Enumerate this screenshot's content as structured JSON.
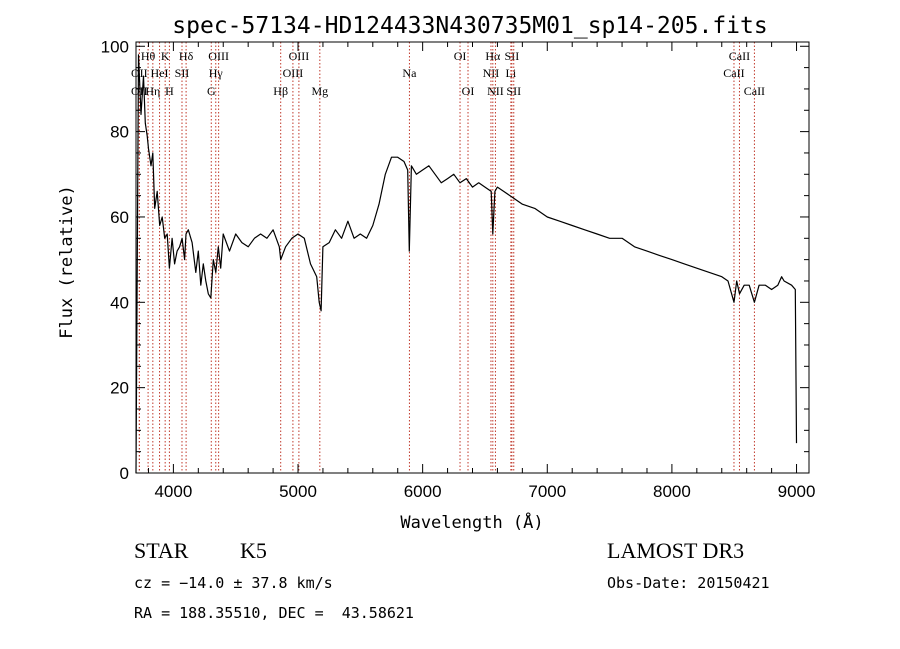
{
  "chart_data": {
    "type": "line",
    "title": "spec-57134-HD124433N430735M01_sp14-205.fits",
    "xlabel": "Wavelength (Å)",
    "ylabel": "Flux (relative)",
    "xlim": [
      3700,
      9100
    ],
    "ylim": [
      0,
      101
    ],
    "xticks": [
      4000,
      5000,
      6000,
      7000,
      8000,
      9000
    ],
    "yticks": [
      0,
      20,
      40,
      60,
      80,
      100
    ],
    "grid": false,
    "line_color": "#000000",
    "marker_color": "#c0392b",
    "series": [
      {
        "name": "",
        "x": [
          3700,
          3720,
          3740,
          3760,
          3775,
          3790,
          3800,
          3820,
          3835,
          3850,
          3870,
          3890,
          3910,
          3930,
          3950,
          3968,
          3990,
          4010,
          4030,
          4050,
          4070,
          4090,
          4101,
          4120,
          4150,
          4180,
          4200,
          4220,
          4240,
          4260,
          4280,
          4300,
          4320,
          4340,
          4360,
          4380,
          4400,
          4450,
          4500,
          4550,
          4600,
          4650,
          4700,
          4750,
          4800,
          4850,
          4861,
          4900,
          4950,
          5000,
          5050,
          5100,
          5150,
          5170,
          5185,
          5200,
          5250,
          5300,
          5350,
          5400,
          5450,
          5500,
          5550,
          5600,
          5650,
          5700,
          5750,
          5800,
          5850,
          5880,
          5893,
          5910,
          5950,
          6000,
          6050,
          6100,
          6150,
          6200,
          6250,
          6300,
          6350,
          6400,
          6450,
          6500,
          6550,
          6563,
          6580,
          6600,
          6650,
          6700,
          6750,
          6800,
          6900,
          7000,
          7100,
          7200,
          7300,
          7400,
          7500,
          7600,
          7700,
          7800,
          7900,
          8000,
          8100,
          8200,
          8300,
          8400,
          8450,
          8498,
          8520,
          8542,
          8580,
          8620,
          8662,
          8700,
          8750,
          8800,
          8850,
          8880,
          8900,
          8960,
          8990,
          9000
        ],
        "y": [
          0,
          98,
          84,
          93,
          82,
          79,
          76,
          72,
          75,
          62,
          66,
          58,
          60,
          55,
          56,
          48,
          55,
          49,
          52,
          53,
          55,
          50,
          56,
          57,
          54,
          47,
          52,
          44,
          49,
          45,
          42,
          41,
          50,
          47,
          53,
          48,
          56,
          52,
          56,
          54,
          53,
          55,
          56,
          55,
          57,
          53,
          50,
          53,
          55,
          56,
          55,
          49,
          46,
          40,
          38,
          53,
          54,
          57,
          55,
          59,
          55,
          56,
          55,
          58,
          63,
          70,
          74,
          74,
          73,
          71,
          52,
          72,
          70,
          71,
          72,
          70,
          68,
          69,
          70,
          68,
          69,
          67,
          68,
          67,
          66,
          56,
          66,
          67,
          66,
          65,
          64,
          63,
          62,
          60,
          59,
          58,
          57,
          56,
          55,
          55,
          53,
          52,
          51,
          50,
          49,
          48,
          47,
          46,
          45,
          40,
          45,
          42,
          44,
          44,
          40,
          44,
          44,
          43,
          44,
          46,
          45,
          44,
          43,
          7
        ]
      }
    ],
    "line_markers": [
      {
        "label": "OII",
        "x": 3727,
        "row": 1
      },
      {
        "label": "OII",
        "x": 3727,
        "row": 2
      },
      {
        "label": "Hθ",
        "x": 3797,
        "row": 0
      },
      {
        "label": "Hη",
        "x": 3835,
        "row": 2
      },
      {
        "label": "HeI",
        "x": 3889,
        "row": 1
      },
      {
        "label": "K",
        "x": 3934,
        "row": 0
      },
      {
        "label": "H",
        "x": 3968,
        "row": 2
      },
      {
        "label": "SII",
        "x": 4069,
        "row": 1
      },
      {
        "label": "Hδ",
        "x": 4102,
        "row": 0
      },
      {
        "label": "G",
        "x": 4304,
        "row": 2
      },
      {
        "label": "Hγ",
        "x": 4340,
        "row": 1
      },
      {
        "label": "OIII",
        "x": 4363,
        "row": 0
      },
      {
        "label": "Hβ",
        "x": 4861,
        "row": 2
      },
      {
        "label": "OIII",
        "x": 4959,
        "row": 1
      },
      {
        "label": "OIII",
        "x": 5007,
        "row": 0
      },
      {
        "label": "Mg",
        "x": 5175,
        "row": 2
      },
      {
        "label": "Na",
        "x": 5894,
        "row": 1
      },
      {
        "label": "OI",
        "x": 6300,
        "row": 0
      },
      {
        "label": "OI",
        "x": 6364,
        "row": 2
      },
      {
        "label": "NII",
        "x": 6548,
        "row": 1
      },
      {
        "label": "Hα",
        "x": 6563,
        "row": 0
      },
      {
        "label": "NII",
        "x": 6584,
        "row": 2
      },
      {
        "label": "Li",
        "x": 6708,
        "row": 1
      },
      {
        "label": "SII",
        "x": 6716,
        "row": 0
      },
      {
        "label": "SII",
        "x": 6731,
        "row": 2
      },
      {
        "label": "CaII",
        "x": 8498,
        "row": 1
      },
      {
        "label": "CaII",
        "x": 8542,
        "row": 0
      },
      {
        "label": "CaII",
        "x": 8662,
        "row": 2
      }
    ]
  },
  "info": {
    "object_class": "STAR",
    "subclass": "K5",
    "redshift": "cz = −14.0 ± 37.8 km/s",
    "coordinates": "RA = 188.35510, DEC =  43.58621",
    "survey": "LAMOST DR3",
    "obs_date": "Obs-Date: 20150421"
  }
}
